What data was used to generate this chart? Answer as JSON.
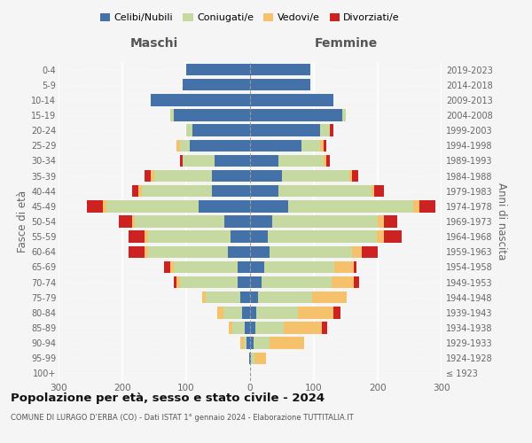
{
  "age_groups": [
    "100+",
    "95-99",
    "90-94",
    "85-89",
    "80-84",
    "75-79",
    "70-74",
    "65-69",
    "60-64",
    "55-59",
    "50-54",
    "45-49",
    "40-44",
    "35-39",
    "30-34",
    "25-29",
    "20-24",
    "15-19",
    "10-14",
    "5-9",
    "0-4"
  ],
  "birth_years": [
    "≤ 1923",
    "1924-1928",
    "1929-1933",
    "1934-1938",
    "1939-1943",
    "1944-1948",
    "1949-1953",
    "1954-1958",
    "1959-1963",
    "1964-1968",
    "1969-1973",
    "1974-1978",
    "1979-1983",
    "1984-1988",
    "1989-1993",
    "1994-1998",
    "1999-2003",
    "2004-2008",
    "2009-2013",
    "2014-2018",
    "2019-2023"
  ],
  "maschi": {
    "celibi": [
      0,
      2,
      5,
      8,
      12,
      15,
      20,
      20,
      35,
      30,
      40,
      80,
      60,
      60,
      55,
      95,
      90,
      120,
      155,
      105,
      100
    ],
    "coniugati": [
      0,
      0,
      5,
      20,
      30,
      55,
      90,
      100,
      125,
      130,
      140,
      145,
      110,
      90,
      50,
      15,
      10,
      5,
      0,
      0,
      0
    ],
    "vedovi": [
      0,
      0,
      5,
      5,
      10,
      5,
      5,
      5,
      5,
      5,
      5,
      5,
      5,
      5,
      0,
      5,
      0,
      0,
      0,
      0,
      0
    ],
    "divorziati": [
      0,
      0,
      0,
      0,
      0,
      0,
      5,
      10,
      25,
      25,
      20,
      25,
      10,
      10,
      5,
      0,
      0,
      0,
      0,
      0,
      0
    ]
  },
  "femmine": {
    "nubili": [
      0,
      2,
      5,
      8,
      10,
      12,
      18,
      22,
      30,
      28,
      35,
      60,
      45,
      50,
      45,
      80,
      110,
      145,
      130,
      95,
      95
    ],
    "coniugate": [
      0,
      5,
      25,
      45,
      65,
      85,
      110,
      110,
      130,
      170,
      165,
      195,
      145,
      105,
      70,
      30,
      15,
      5,
      0,
      0,
      0
    ],
    "vedove": [
      0,
      18,
      55,
      60,
      55,
      55,
      35,
      30,
      15,
      12,
      10,
      10,
      5,
      5,
      5,
      5,
      0,
      0,
      0,
      0,
      0
    ],
    "divorziate": [
      0,
      0,
      0,
      8,
      12,
      0,
      8,
      5,
      25,
      28,
      20,
      25,
      15,
      10,
      5,
      5,
      5,
      0,
      0,
      0,
      0
    ]
  },
  "colors": {
    "celibi_nubili": "#4472a8",
    "coniugati": "#c5d9a0",
    "vedovi": "#f5c26b",
    "divorziati": "#cc2222"
  },
  "xlim": 300,
  "title": "Popolazione per età, sesso e stato civile - 2024",
  "subtitle": "COMUNE DI LURAGO D’ERBA (CO) - Dati ISTAT 1° gennaio 2024 - Elaborazione TUTTITALIA.IT",
  "xlabel_left": "Maschi",
  "xlabel_right": "Femmine",
  "ylabel_left": "Fasce di età",
  "ylabel_right": "Anni di nascita",
  "legend_labels": [
    "Celibi/Nubili",
    "Coniugati/e",
    "Vedovi/e",
    "Divorziati/e"
  ],
  "background_color": "#f5f5f5"
}
